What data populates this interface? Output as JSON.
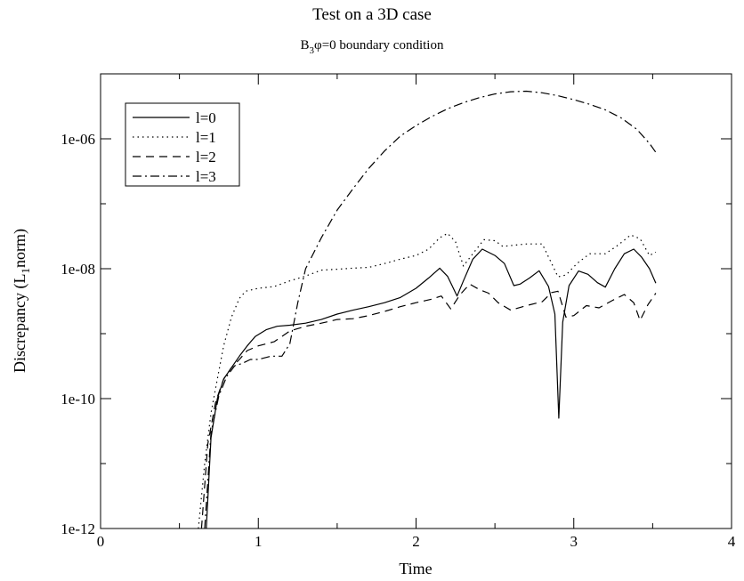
{
  "chart_data": {
    "type": "line",
    "title": "Test on a 3D case",
    "subtitle": {
      "base": "B",
      "sub": "3",
      "rest": "φ=0 boundary condition"
    },
    "xlabel": "Time",
    "ylabel": {
      "base": "Discrepancy (L",
      "sub": "1",
      "rest": "norm)"
    },
    "xlim": [
      0,
      4
    ],
    "ylim": [
      1e-12,
      1e-05
    ],
    "yscale": "log",
    "grid": false,
    "legend_position": "top-left",
    "x_ticks": [
      {
        "value": 0,
        "label": "0"
      },
      {
        "value": 1,
        "label": "1"
      },
      {
        "value": 2,
        "label": "2"
      },
      {
        "value": 3,
        "label": "3"
      },
      {
        "value": 4,
        "label": "4"
      }
    ],
    "y_ticks": [
      {
        "value": 1e-12,
        "label": "1e-12"
      },
      {
        "value": 1e-10,
        "label": "1e-10"
      },
      {
        "value": 1e-08,
        "label": "1e-08"
      },
      {
        "value": 1e-06,
        "label": "1e-06"
      }
    ],
    "series": [
      {
        "name": "l=0",
        "dash": "solid",
        "points": [
          [
            0.67,
            1e-12
          ],
          [
            0.7,
            2.5e-11
          ],
          [
            0.74,
            1e-10
          ],
          [
            0.78,
            2e-10
          ],
          [
            0.83,
            3e-10
          ],
          [
            0.88,
            4.5e-10
          ],
          [
            0.93,
            6.5e-10
          ],
          [
            0.98,
            9e-10
          ],
          [
            1.05,
            1.15e-09
          ],
          [
            1.12,
            1.3e-09
          ],
          [
            1.2,
            1.35e-09
          ],
          [
            1.3,
            1.45e-09
          ],
          [
            1.4,
            1.65e-09
          ],
          [
            1.5,
            2e-09
          ],
          [
            1.6,
            2.3e-09
          ],
          [
            1.7,
            2.6e-09
          ],
          [
            1.8,
            3e-09
          ],
          [
            1.9,
            3.6e-09
          ],
          [
            2.0,
            5e-09
          ],
          [
            2.08,
            7.2e-09
          ],
          [
            2.15,
            1.02e-08
          ],
          [
            2.2,
            7.6e-09
          ],
          [
            2.26,
            3.8e-09
          ],
          [
            2.3,
            6.5e-09
          ],
          [
            2.36,
            1.4e-08
          ],
          [
            2.42,
            2e-08
          ],
          [
            2.5,
            1.6e-08
          ],
          [
            2.56,
            1.2e-08
          ],
          [
            2.62,
            5.5e-09
          ],
          [
            2.66,
            5.8e-09
          ],
          [
            2.72,
            7.2e-09
          ],
          [
            2.78,
            9.3e-09
          ],
          [
            2.84,
            5.3e-09
          ],
          [
            2.88,
            2e-09
          ],
          [
            2.905,
            5e-11
          ],
          [
            2.93,
            1.5e-09
          ],
          [
            2.97,
            5.5e-09
          ],
          [
            3.03,
            9.2e-09
          ],
          [
            3.09,
            8.2e-09
          ],
          [
            3.15,
            6.1e-09
          ],
          [
            3.2,
            5.2e-09
          ],
          [
            3.26,
            1e-08
          ],
          [
            3.32,
            1.7e-08
          ],
          [
            3.38,
            2e-08
          ],
          [
            3.43,
            1.5e-08
          ],
          [
            3.48,
            1e-08
          ],
          [
            3.52,
            6e-09
          ]
        ]
      },
      {
        "name": "l=1",
        "dash": "dotted",
        "points": [
          [
            0.62,
            1e-12
          ],
          [
            0.66,
            1e-11
          ],
          [
            0.7,
            6e-11
          ],
          [
            0.74,
            2e-10
          ],
          [
            0.78,
            6.5e-10
          ],
          [
            0.83,
            1.8e-09
          ],
          [
            0.88,
            3.5e-09
          ],
          [
            0.92,
            4.5e-09
          ],
          [
            1.0,
            5e-09
          ],
          [
            1.1,
            5.3e-09
          ],
          [
            1.2,
            6.5e-09
          ],
          [
            1.3,
            7.7e-09
          ],
          [
            1.4,
            9.5e-09
          ],
          [
            1.5,
            9.8e-09
          ],
          [
            1.6,
            1.02e-08
          ],
          [
            1.7,
            1.05e-08
          ],
          [
            1.8,
            1.2e-08
          ],
          [
            1.9,
            1.4e-08
          ],
          [
            2.0,
            1.6e-08
          ],
          [
            2.08,
            2e-08
          ],
          [
            2.15,
            3e-08
          ],
          [
            2.2,
            3.5e-08
          ],
          [
            2.25,
            2.6e-08
          ],
          [
            2.3,
            1.1e-08
          ],
          [
            2.36,
            1.7e-08
          ],
          [
            2.43,
            2.8e-08
          ],
          [
            2.5,
            2.7e-08
          ],
          [
            2.55,
            2.2e-08
          ],
          [
            2.62,
            2.3e-08
          ],
          [
            2.7,
            2.4e-08
          ],
          [
            2.8,
            2.4e-08
          ],
          [
            2.86,
            1.2e-08
          ],
          [
            2.9,
            7.5e-09
          ],
          [
            2.95,
            8e-09
          ],
          [
            3.02,
            1.2e-08
          ],
          [
            3.1,
            1.7e-08
          ],
          [
            3.2,
            1.7e-08
          ],
          [
            3.28,
            2.3e-08
          ],
          [
            3.36,
            3.3e-08
          ],
          [
            3.42,
            2.9e-08
          ],
          [
            3.48,
            1.6e-08
          ],
          [
            3.52,
            1.8e-08
          ]
        ]
      },
      {
        "name": "l=2",
        "dash": "dashed",
        "points": [
          [
            0.64,
            1e-12
          ],
          [
            0.68,
            2e-11
          ],
          [
            0.73,
            9e-11
          ],
          [
            0.78,
            2e-10
          ],
          [
            0.83,
            3e-10
          ],
          [
            0.88,
            4e-10
          ],
          [
            0.93,
            5.5e-10
          ],
          [
            1.0,
            6.5e-10
          ],
          [
            1.1,
            7.5e-10
          ],
          [
            1.2,
            1.1e-09
          ],
          [
            1.3,
            1.3e-09
          ],
          [
            1.4,
            1.45e-09
          ],
          [
            1.5,
            1.65e-09
          ],
          [
            1.6,
            1.7e-09
          ],
          [
            1.7,
            1.9e-09
          ],
          [
            1.8,
            2.2e-09
          ],
          [
            1.9,
            2.6e-09
          ],
          [
            2.0,
            3e-09
          ],
          [
            2.1,
            3.4e-09
          ],
          [
            2.16,
            3.8e-09
          ],
          [
            2.22,
            2.4e-09
          ],
          [
            2.28,
            4e-09
          ],
          [
            2.34,
            5.8e-09
          ],
          [
            2.4,
            4.8e-09
          ],
          [
            2.46,
            4.2e-09
          ],
          [
            2.52,
            3e-09
          ],
          [
            2.6,
            2.3e-09
          ],
          [
            2.7,
            2.7e-09
          ],
          [
            2.8,
            3.1e-09
          ],
          [
            2.86,
            4.3e-09
          ],
          [
            2.9,
            4.5e-09
          ],
          [
            2.95,
            1.8e-09
          ],
          [
            3.0,
            1.9e-09
          ],
          [
            3.08,
            2.7e-09
          ],
          [
            3.16,
            2.5e-09
          ],
          [
            3.24,
            3.2e-09
          ],
          [
            3.32,
            4e-09
          ],
          [
            3.38,
            3e-09
          ],
          [
            3.42,
            1.6e-09
          ],
          [
            3.47,
            2.8e-09
          ],
          [
            3.52,
            4.2e-09
          ]
        ]
      },
      {
        "name": "l=3",
        "dash": "dashdot",
        "points": [
          [
            0.66,
            1e-12
          ],
          [
            0.7,
            3e-11
          ],
          [
            0.75,
            1.1e-10
          ],
          [
            0.8,
            2.2e-10
          ],
          [
            0.85,
            3.2e-10
          ],
          [
            0.9,
            3.5e-10
          ],
          [
            0.95,
            4e-10
          ],
          [
            1.0,
            4e-10
          ],
          [
            1.08,
            4.5e-10
          ],
          [
            1.15,
            4.5e-10
          ],
          [
            1.2,
            7e-10
          ],
          [
            1.25,
            3e-09
          ],
          [
            1.3,
            1e-08
          ],
          [
            1.4,
            3e-08
          ],
          [
            1.5,
            8e-08
          ],
          [
            1.6,
            1.7e-07
          ],
          [
            1.7,
            3.5e-07
          ],
          [
            1.8,
            6.5e-07
          ],
          [
            1.9,
            1.1e-06
          ],
          [
            2.0,
            1.6e-06
          ],
          [
            2.1,
            2.2e-06
          ],
          [
            2.2,
            2.9e-06
          ],
          [
            2.3,
            3.6e-06
          ],
          [
            2.4,
            4.3e-06
          ],
          [
            2.5,
            4.9e-06
          ],
          [
            2.6,
            5.3e-06
          ],
          [
            2.7,
            5.4e-06
          ],
          [
            2.8,
            5.1e-06
          ],
          [
            2.9,
            4.6e-06
          ],
          [
            3.0,
            4e-06
          ],
          [
            3.1,
            3.4e-06
          ],
          [
            3.2,
            2.8e-06
          ],
          [
            3.3,
            2.1e-06
          ],
          [
            3.4,
            1.4e-06
          ],
          [
            3.48,
            8.5e-07
          ],
          [
            3.52,
            6.2e-07
          ]
        ]
      }
    ]
  }
}
